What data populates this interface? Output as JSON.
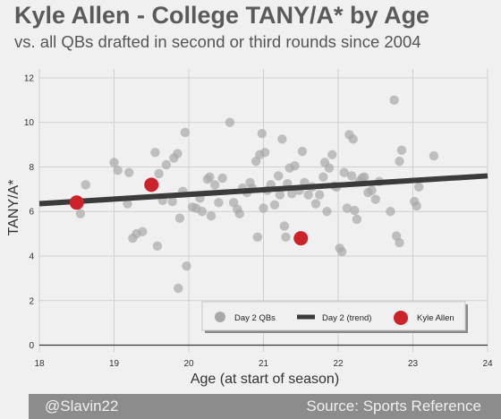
{
  "header": {
    "title": "Kyle Allen - College TANY/A* by Age",
    "subtitle": "vs. all QBs drafted in second or third rounds since 2004"
  },
  "footer": {
    "handle": "@Slavin22",
    "source": "Source: Sports Reference"
  },
  "colors": {
    "background": "#f0f0f0",
    "scatter": "#a8a8a8",
    "trend": "#3b3b3b",
    "highlight": "#cc2229",
    "grid": "#cfcfcf"
  },
  "chart_data": {
    "type": "scatter",
    "title": "Kyle Allen - College TANY/A* by Age",
    "subtitle": "vs. all QBs drafted in second or third rounds since 2004",
    "xlabel": "Age (at start of season)",
    "ylabel": "TANY/A*",
    "xlim": [
      18,
      24
    ],
    "ylim": [
      -0.3,
      12.4
    ],
    "xticks": [
      "18",
      "19",
      "20",
      "21",
      "22",
      "23",
      "24"
    ],
    "yticks": [
      "0",
      "2",
      "4",
      "6",
      "8",
      "10",
      "12"
    ],
    "grid": true,
    "legend_position": "bottom-right",
    "legend": {
      "scatter": "Day 2 QBs",
      "trend": "Day 2 (trend)",
      "highlight": "Kyle Allen"
    },
    "series": [
      {
        "name": "Day 2 QBs",
        "type": "scatter",
        "points": [
          [
            18.55,
            5.9
          ],
          [
            18.62,
            7.2
          ],
          [
            19.0,
            8.2
          ],
          [
            19.05,
            7.85
          ],
          [
            19.2,
            7.75
          ],
          [
            19.18,
            6.35
          ],
          [
            19.25,
            4.8
          ],
          [
            19.3,
            5.0
          ],
          [
            19.38,
            5.1
          ],
          [
            19.55,
            8.65
          ],
          [
            19.58,
            4.45
          ],
          [
            19.6,
            7.7
          ],
          [
            19.65,
            6.5
          ],
          [
            19.7,
            8.1
          ],
          [
            19.8,
            8.4
          ],
          [
            19.85,
            8.6
          ],
          [
            19.78,
            6.45
          ],
          [
            19.88,
            5.7
          ],
          [
            19.92,
            6.9
          ],
          [
            19.95,
            9.55
          ],
          [
            19.97,
            3.55
          ],
          [
            19.86,
            2.55
          ],
          [
            20.05,
            6.2
          ],
          [
            20.1,
            6.15
          ],
          [
            20.15,
            6.6
          ],
          [
            20.18,
            6.0
          ],
          [
            20.25,
            7.45
          ],
          [
            20.28,
            7.55
          ],
          [
            20.3,
            5.8
          ],
          [
            20.35,
            7.2
          ],
          [
            20.4,
            6.4
          ],
          [
            20.45,
            7.5
          ],
          [
            20.55,
            10.0
          ],
          [
            20.6,
            6.4
          ],
          [
            20.65,
            6.1
          ],
          [
            20.68,
            5.9
          ],
          [
            20.72,
            7.05
          ],
          [
            20.78,
            6.85
          ],
          [
            20.82,
            7.3
          ],
          [
            20.85,
            7.05
          ],
          [
            20.9,
            8.25
          ],
          [
            20.92,
            4.85
          ],
          [
            20.95,
            8.55
          ],
          [
            20.98,
            9.5
          ],
          [
            21.0,
            6.15
          ],
          [
            21.02,
            8.65
          ],
          [
            21.05,
            6.95
          ],
          [
            21.1,
            7.2
          ],
          [
            21.15,
            6.3
          ],
          [
            21.2,
            7.6
          ],
          [
            21.22,
            6.75
          ],
          [
            21.25,
            9.25
          ],
          [
            21.28,
            5.35
          ],
          [
            21.3,
            4.85
          ],
          [
            21.32,
            7.25
          ],
          [
            21.35,
            7.95
          ],
          [
            21.38,
            6.8
          ],
          [
            21.42,
            8.05
          ],
          [
            21.48,
            6.95
          ],
          [
            21.52,
            8.7
          ],
          [
            21.55,
            7.3
          ],
          [
            21.6,
            6.75
          ],
          [
            21.65,
            7.1
          ],
          [
            21.7,
            6.35
          ],
          [
            21.75,
            6.75
          ],
          [
            21.8,
            7.55
          ],
          [
            21.82,
            8.2
          ],
          [
            21.85,
            6.0
          ],
          [
            21.88,
            7.95
          ],
          [
            21.92,
            8.55
          ],
          [
            21.95,
            7.15
          ],
          [
            21.98,
            7.1
          ],
          [
            22.02,
            4.35
          ],
          [
            22.05,
            4.2
          ],
          [
            22.08,
            7.75
          ],
          [
            22.12,
            6.15
          ],
          [
            22.15,
            9.45
          ],
          [
            22.2,
            9.25
          ],
          [
            22.18,
            7.6
          ],
          [
            22.22,
            6.05
          ],
          [
            22.25,
            5.65
          ],
          [
            22.28,
            7.35
          ],
          [
            22.32,
            7.5
          ],
          [
            22.35,
            7.55
          ],
          [
            22.4,
            6.85
          ],
          [
            22.45,
            6.95
          ],
          [
            22.5,
            6.55
          ],
          [
            22.55,
            7.35
          ],
          [
            22.7,
            6.0
          ],
          [
            22.75,
            11.0
          ],
          [
            22.78,
            4.9
          ],
          [
            22.82,
            4.6
          ],
          [
            22.85,
            8.75
          ],
          [
            22.82,
            8.25
          ],
          [
            23.02,
            6.45
          ],
          [
            23.05,
            6.25
          ],
          [
            23.08,
            7.1
          ],
          [
            23.28,
            8.5
          ]
        ]
      },
      {
        "name": "Day 2 (trend)",
        "type": "line",
        "x": [
          18,
          24
        ],
        "y": [
          6.35,
          7.6
        ]
      },
      {
        "name": "Kyle Allen",
        "type": "scatter",
        "points": [
          [
            18.5,
            6.4
          ],
          [
            19.5,
            7.2
          ],
          [
            21.5,
            4.8
          ]
        ]
      }
    ]
  }
}
